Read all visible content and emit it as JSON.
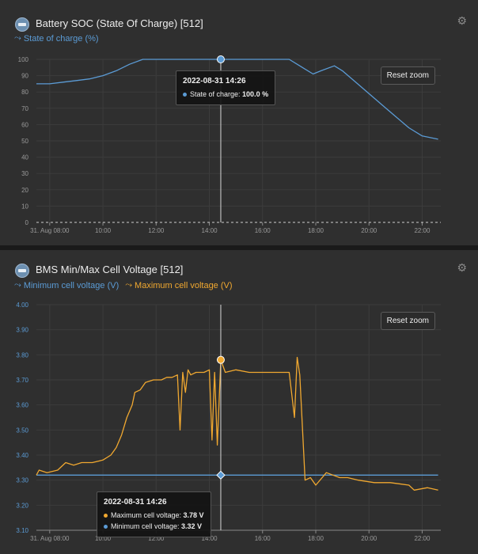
{
  "colors": {
    "blue": "#5b9bd5",
    "orange": "#f0a830",
    "grid": "#3c3c3c",
    "axis": "#8a8a8a"
  },
  "panel1": {
    "title": "Battery SOC (State Of Charge) [512]",
    "gear_icon": "gear-icon",
    "legend": [
      {
        "label": "State of charge (%)",
        "color": "#5b9bd5"
      }
    ],
    "reset_label": "Reset zoom",
    "tooltip": {
      "title": "2022-08-31 14:26",
      "rows": [
        {
          "label": "State of charge: ",
          "value": "100.0 %",
          "color": "#5b9bd5"
        }
      ]
    }
  },
  "panel2": {
    "title": "BMS Min/Max Cell Voltage [512]",
    "gear_icon": "gear-icon",
    "legend": [
      {
        "label": "Minimum cell voltage (V)",
        "color": "#5b9bd5"
      },
      {
        "label": "Maximum cell voltage (V)",
        "color": "#f0a830"
      }
    ],
    "reset_label": "Reset zoom",
    "tooltip": {
      "title": "2022-08-31 14:26",
      "rows": [
        {
          "label": "Maximum cell voltage: ",
          "value": "3.78 V",
          "color": "#f0a830"
        },
        {
          "label": "Minimum cell voltage: ",
          "value": "3.32 V",
          "color": "#5b9bd5"
        }
      ]
    }
  },
  "chart_data": [
    {
      "type": "line",
      "ylim": [
        0,
        100
      ],
      "xlim": [
        7.5,
        22.7
      ],
      "yticks": [
        0,
        10,
        20,
        30,
        40,
        50,
        60,
        70,
        80,
        90,
        100
      ],
      "xticks": [
        8,
        10,
        12,
        14,
        16,
        18,
        20,
        22
      ],
      "xticklabels": [
        "31. Aug 08:00",
        "10:00",
        "12:00",
        "14:00",
        "16:00",
        "18:00",
        "20:00",
        "22:00"
      ],
      "crosshair_x": 14.43,
      "series": [
        {
          "name": "State of charge (%)",
          "color": "#5b9bd5",
          "x": [
            7.5,
            8.0,
            8.5,
            9.0,
            9.5,
            10.0,
            10.5,
            11.0,
            11.5,
            12.0,
            13.0,
            14.0,
            14.43,
            15.0,
            16.0,
            17.0,
            17.5,
            17.9,
            18.2,
            18.7,
            19.0,
            19.5,
            20.0,
            20.5,
            21.0,
            21.5,
            22.0,
            22.6
          ],
          "values": [
            85,
            85,
            86,
            87,
            88,
            90,
            93,
            97,
            100,
            100,
            100,
            100,
            100,
            100,
            100,
            100,
            95,
            91,
            93,
            96,
            93,
            86,
            79,
            72,
            65,
            58,
            53,
            51
          ]
        }
      ]
    },
    {
      "type": "line",
      "ylim": [
        3.1,
        4.0
      ],
      "xlim": [
        7.5,
        22.7
      ],
      "yticks": [
        3.1,
        3.2,
        3.3,
        3.4,
        3.5,
        3.6,
        3.7,
        3.8,
        3.9,
        4.0
      ],
      "yticklabels": [
        "3.10",
        "3.20",
        "3.30",
        "3.40",
        "3.50",
        "3.60",
        "3.70",
        "3.80",
        "3.90",
        "4.00"
      ],
      "xticks": [
        8,
        10,
        12,
        14,
        16,
        18,
        20,
        22
      ],
      "xticklabels": [
        "31. Aug 08:00",
        "10:00",
        "12:00",
        "14:00",
        "16:00",
        "18:00",
        "20:00",
        "22:00"
      ],
      "crosshair_x": 14.43,
      "series": [
        {
          "name": "Minimum cell voltage (V)",
          "color": "#5b9bd5",
          "x": [
            7.5,
            22.6
          ],
          "values": [
            3.32,
            3.32
          ]
        },
        {
          "name": "Maximum cell voltage (V)",
          "color": "#f0a830",
          "x": [
            7.5,
            7.6,
            7.9,
            8.3,
            8.6,
            8.9,
            9.2,
            9.6,
            10.0,
            10.3,
            10.5,
            10.7,
            10.9,
            11.1,
            11.2,
            11.4,
            11.6,
            11.9,
            12.2,
            12.4,
            12.6,
            12.8,
            12.9,
            13.0,
            13.1,
            13.2,
            13.3,
            13.5,
            13.8,
            14.0,
            14.1,
            14.2,
            14.3,
            14.43,
            14.6,
            15.0,
            15.5,
            16.0,
            16.5,
            17.0,
            17.2,
            17.3,
            17.4,
            17.6,
            17.8,
            18.0,
            18.4,
            18.9,
            19.2,
            19.6,
            20.2,
            20.8,
            21.5,
            21.7,
            22.2,
            22.6
          ],
          "values": [
            3.32,
            3.34,
            3.33,
            3.34,
            3.37,
            3.36,
            3.37,
            3.37,
            3.38,
            3.4,
            3.43,
            3.48,
            3.55,
            3.6,
            3.65,
            3.66,
            3.69,
            3.7,
            3.7,
            3.71,
            3.71,
            3.72,
            3.5,
            3.73,
            3.65,
            3.74,
            3.72,
            3.73,
            3.73,
            3.74,
            3.46,
            3.73,
            3.44,
            3.78,
            3.73,
            3.74,
            3.73,
            3.73,
            3.73,
            3.73,
            3.55,
            3.79,
            3.72,
            3.3,
            3.31,
            3.28,
            3.33,
            3.31,
            3.31,
            3.3,
            3.29,
            3.29,
            3.28,
            3.26,
            3.27,
            3.26
          ]
        }
      ]
    }
  ]
}
